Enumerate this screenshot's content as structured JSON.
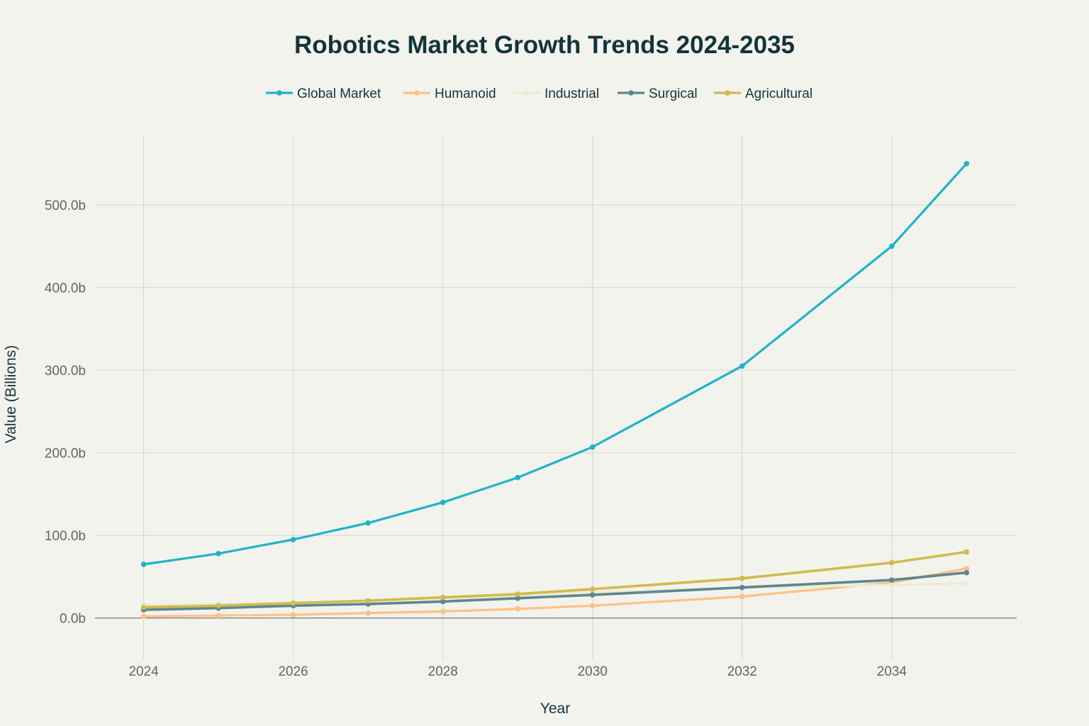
{
  "chart_data": {
    "type": "line",
    "title": "Robotics Market Growth Trends 2024-2035",
    "xlabel": "Year",
    "ylabel": "Value (Billions)",
    "x": [
      2024,
      2025,
      2026,
      2027,
      2028,
      2029,
      2030,
      2032,
      2034,
      2035
    ],
    "xticks": [
      "2024",
      "2026",
      "2028",
      "2030",
      "2032",
      "2034"
    ],
    "xlim": [
      2023.35,
      2035.67
    ],
    "yticks": [
      0,
      100,
      200,
      300,
      400,
      500
    ],
    "ytick_labels": [
      "0.0b",
      "100.0b",
      "200.0b",
      "300.0b",
      "400.0b",
      "500.0b"
    ],
    "ylim": [
      -50,
      585
    ],
    "grid": true,
    "legend_position": "top-center",
    "series": [
      {
        "name": "Global Market",
        "color": "#1fb3c8",
        "width": 3.2,
        "values": [
          65,
          78,
          95,
          115,
          140,
          170,
          207,
          305,
          450,
          550
        ]
      },
      {
        "name": "Humanoid",
        "color": "#ffc185",
        "width": 3.2,
        "values": [
          2,
          3,
          4,
          6,
          8,
          11,
          15,
          26,
          43,
          60
        ]
      },
      {
        "name": "Industrial",
        "color": "#ecebd5",
        "width": 3.2,
        "values": [
          16,
          17,
          19,
          21,
          24,
          27,
          31,
          37,
          40,
          42
        ]
      },
      {
        "name": "Surgical",
        "color": "#5d878f",
        "width": 3.6,
        "values": [
          10,
          12,
          15,
          17,
          20,
          24,
          28,
          37,
          46,
          55
        ]
      },
      {
        "name": "Agricultural",
        "color": "#d2ba4c",
        "width": 3.6,
        "values": [
          13,
          15,
          18,
          21,
          25,
          29,
          35,
          48,
          67,
          80
        ]
      }
    ]
  }
}
